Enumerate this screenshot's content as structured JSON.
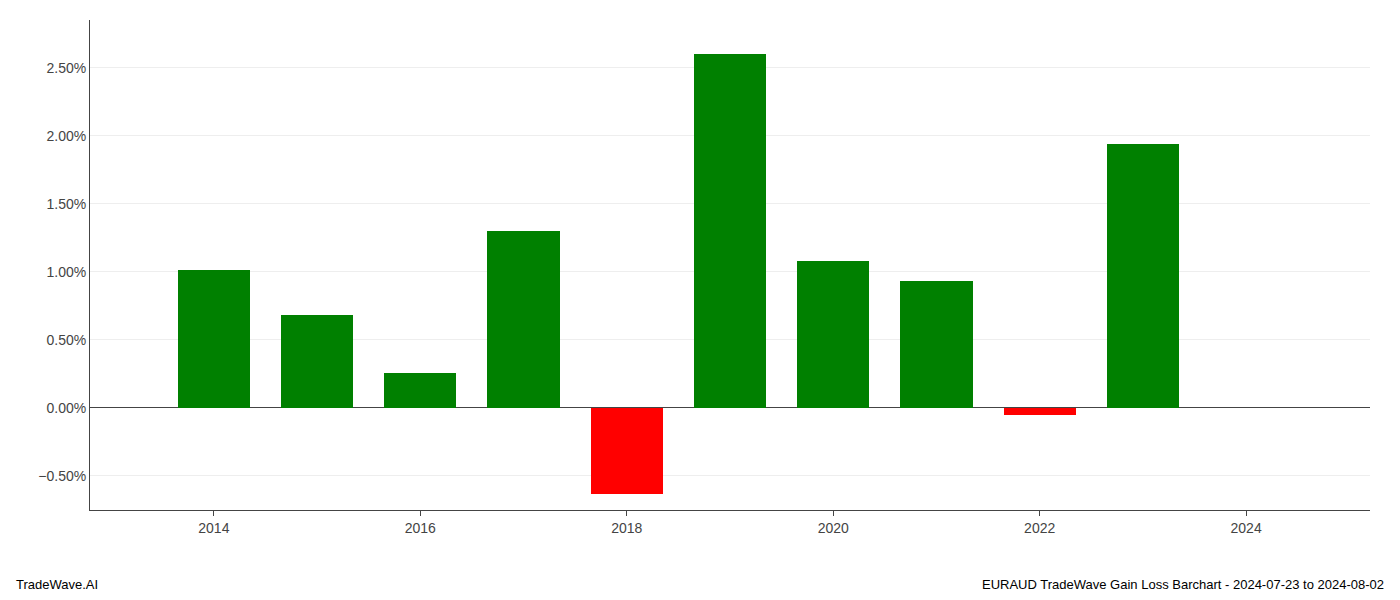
{
  "chart_data": {
    "type": "bar",
    "title": "EURAUD TradeWave Gain Loss Barchart - 2024-07-23 to 2024-08-02",
    "annotations": [
      "TradeWave.AI"
    ],
    "x": [
      2014,
      2015,
      2016,
      2017,
      2018,
      2019,
      2020,
      2021,
      2022,
      2023
    ],
    "values": [
      1.01,
      0.68,
      0.26,
      1.3,
      -0.63,
      2.6,
      1.08,
      0.93,
      -0.05,
      1.94
    ],
    "colors": [
      "#008000",
      "#008000",
      "#008000",
      "#008000",
      "#ff0000",
      "#008000",
      "#008000",
      "#008000",
      "#ff0000",
      "#008000"
    ],
    "xlim": [
      2012.8,
      2025.2
    ],
    "xticks": [
      2014,
      2016,
      2018,
      2020,
      2022,
      2024
    ],
    "ylim": [
      -0.75,
      2.85
    ],
    "yticks": [
      {
        "value": -0.5,
        "label": "−0.50%"
      },
      {
        "value": 0.0,
        "label": "0.00%"
      },
      {
        "value": 0.5,
        "label": "0.50%"
      },
      {
        "value": 1.0,
        "label": "1.00%"
      },
      {
        "value": 1.5,
        "label": "1.50%"
      },
      {
        "value": 2.0,
        "label": "2.00%"
      },
      {
        "value": 2.5,
        "label": "2.50%"
      }
    ],
    "grid": true
  }
}
